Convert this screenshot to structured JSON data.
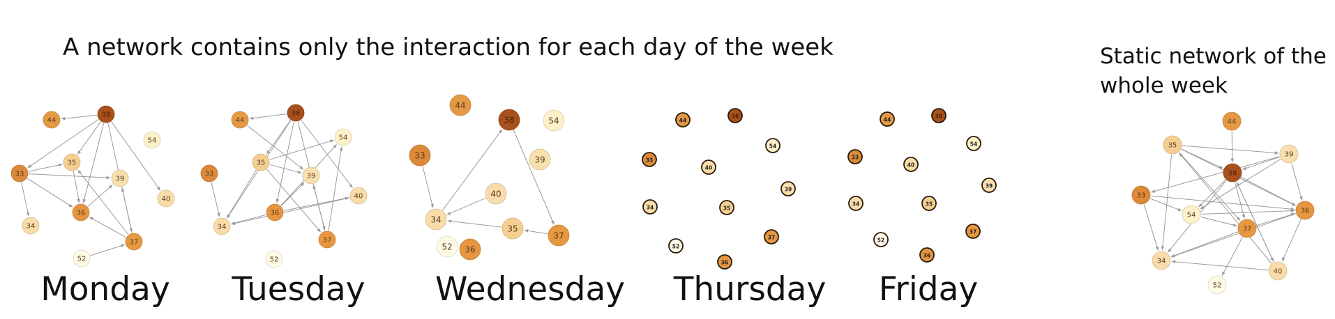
{
  "title": "A network contains only the interaction for each day of the week",
  "static_title": {
    "line1": "Static network of the",
    "line2": "whole week"
  },
  "palette": {
    "38": "#a8511c",
    "44": "#e49a45",
    "33": "#dc8a3a",
    "36": "#e59641",
    "37": "#e69840",
    "35": "#f4cf91",
    "39": "#f8e0ae",
    "34": "#f8dcaa",
    "40": "#f8dcaa",
    "54": "#fdf1ca",
    "52": "#fefae6",
    "edge": "#9a9a9a",
    "text": "#5a3a1a",
    "outline": "#b98e60",
    "dark_outline": "#2a1a0a"
  },
  "panels": [
    {
      "label": "Monday",
      "style": "soft",
      "nodes": [
        "44",
        "38",
        "54",
        "33",
        "35",
        "39",
        "36",
        "40",
        "34",
        "37",
        "52"
      ],
      "edges": [
        [
          "38",
          "44"
        ],
        [
          "38",
          "33"
        ],
        [
          "38",
          "35"
        ],
        [
          "38",
          "36"
        ],
        [
          "38",
          "37"
        ],
        [
          "38",
          "40"
        ],
        [
          "35",
          "36"
        ],
        [
          "33",
          "39"
        ],
        [
          "33",
          "35"
        ],
        [
          "33",
          "36"
        ],
        [
          "33",
          "34"
        ],
        [
          "36",
          "39"
        ],
        [
          "37",
          "36"
        ],
        [
          "37",
          "39"
        ],
        [
          "37",
          "35"
        ],
        [
          "52",
          "37"
        ]
      ]
    },
    {
      "label": "Tuesday",
      "style": "soft",
      "nodes": [
        "44",
        "38",
        "54",
        "33",
        "35",
        "39",
        "36",
        "40",
        "34",
        "37",
        "52"
      ],
      "edges": [
        [
          "38",
          "44"
        ],
        [
          "38",
          "35"
        ],
        [
          "38",
          "36"
        ],
        [
          "38",
          "37"
        ],
        [
          "38",
          "34"
        ],
        [
          "38",
          "40"
        ],
        [
          "35",
          "54"
        ],
        [
          "35",
          "39"
        ],
        [
          "35",
          "37"
        ],
        [
          "35",
          "34"
        ],
        [
          "36",
          "54"
        ],
        [
          "36",
          "40"
        ],
        [
          "36",
          "39"
        ],
        [
          "36",
          "34"
        ],
        [
          "37",
          "39"
        ],
        [
          "37",
          "54"
        ],
        [
          "33",
          "34"
        ],
        [
          "44",
          "39"
        ],
        [
          "40",
          "34"
        ]
      ]
    },
    {
      "label": "Wednesday",
      "style": "soft",
      "nodes": [
        "44",
        "38",
        "54",
        "33",
        "39",
        "40",
        "34",
        "35",
        "37",
        "52",
        "36"
      ],
      "edges": [
        [
          "34",
          "38"
        ],
        [
          "38",
          "37"
        ],
        [
          "33",
          "34"
        ],
        [
          "40",
          "34"
        ],
        [
          "35",
          "34"
        ],
        [
          "37",
          "35"
        ]
      ]
    },
    {
      "label": "Thursday",
      "style": "outlined",
      "nodes": [
        "44",
        "38",
        "54",
        "33",
        "40",
        "39",
        "34",
        "35",
        "37",
        "52",
        "36"
      ],
      "edges": []
    },
    {
      "label": "Friday",
      "style": "outlined",
      "nodes": [
        "44",
        "38",
        "54",
        "33",
        "40",
        "39",
        "34",
        "35",
        "37",
        "52",
        "36"
      ],
      "edges": []
    },
    {
      "label": "",
      "style": "soft",
      "nodes": [
        "44",
        "35",
        "39",
        "38",
        "33",
        "54",
        "37",
        "36",
        "34",
        "40",
        "52"
      ],
      "edges": [
        [
          "44",
          "38"
        ],
        [
          "35",
          "38"
        ],
        [
          "35",
          "39"
        ],
        [
          "35",
          "36"
        ],
        [
          "35",
          "34"
        ],
        [
          "35",
          "37"
        ],
        [
          "39",
          "54"
        ],
        [
          "39",
          "38"
        ],
        [
          "39",
          "33"
        ],
        [
          "39",
          "36"
        ],
        [
          "38",
          "36"
        ],
        [
          "38",
          "54"
        ],
        [
          "38",
          "37"
        ],
        [
          "38",
          "40"
        ],
        [
          "38",
          "34"
        ],
        [
          "33",
          "36"
        ],
        [
          "33",
          "54"
        ],
        [
          "33",
          "34"
        ],
        [
          "54",
          "37"
        ],
        [
          "54",
          "36"
        ],
        [
          "37",
          "36"
        ],
        [
          "37",
          "34"
        ],
        [
          "37",
          "52"
        ],
        [
          "36",
          "40"
        ],
        [
          "36",
          "34"
        ],
        [
          "40",
          "34"
        ],
        [
          "40",
          "35"
        ],
        [
          "40",
          "38"
        ]
      ]
    }
  ]
}
